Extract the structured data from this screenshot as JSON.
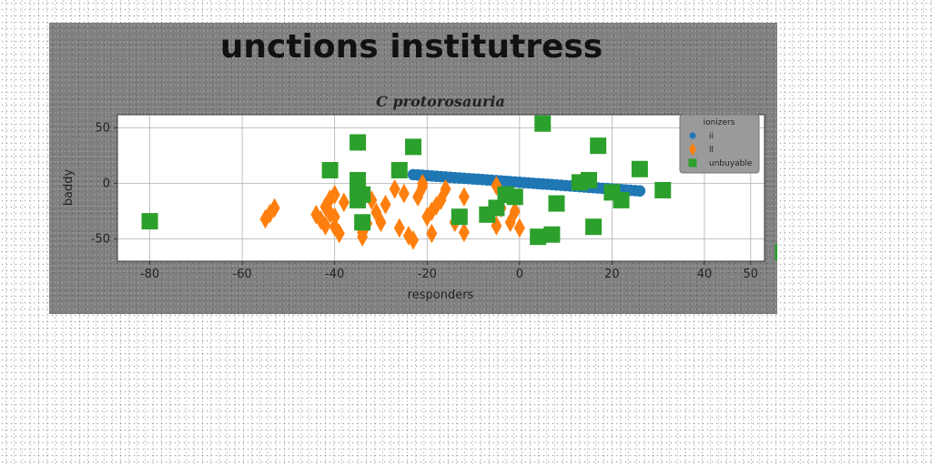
{
  "figure": {
    "suptitle": "unctions institutress"
  },
  "chart_data": {
    "type": "scatter",
    "title": "C protorosauria",
    "xlabel": "responders",
    "ylabel": "baddy",
    "xlim": [
      -87,
      53
    ],
    "ylim": [
      -70,
      62
    ],
    "xticks": [
      -80,
      -60,
      -40,
      -20,
      0,
      20,
      40,
      50
    ],
    "yticks": [
      50,
      0,
      -50
    ],
    "grid": true,
    "legend": {
      "title": "ionizers",
      "placement": "top-right"
    },
    "series": [
      {
        "name": "ii",
        "marker": "circle",
        "color": "#1f77b4",
        "x": [
          -23,
          -22,
          -21,
          -20,
          -19,
          -18,
          -17,
          -16,
          -15,
          -14,
          -13,
          -12,
          -11,
          -10,
          -9,
          -8,
          -7,
          -6,
          -5,
          -4,
          -3,
          -2,
          -1,
          0,
          1,
          2,
          3,
          4,
          5,
          6,
          7,
          8,
          9,
          10,
          11,
          12,
          13,
          14,
          15,
          16,
          17,
          18,
          19,
          20,
          21,
          22,
          23,
          24,
          25,
          26
        ],
        "y": [
          8,
          7.7,
          7.4,
          7.1,
          6.8,
          6.5,
          6.2,
          5.9,
          5.6,
          5.3,
          5,
          4.7,
          4.4,
          4.1,
          3.8,
          3.5,
          3.2,
          2.9,
          2.6,
          2.3,
          2,
          1.7,
          1.4,
          1.1,
          0.8,
          0.5,
          0.2,
          -0.1,
          -0.4,
          -0.7,
          -1,
          -1.3,
          -1.6,
          -1.9,
          -2.2,
          -2.5,
          -2.8,
          -3.1,
          -3.4,
          -3.7,
          -4,
          -4.3,
          -4.6,
          -4.9,
          -5.2,
          -5.5,
          -5.8,
          -6.1,
          -6.4,
          -6.7
        ]
      },
      {
        "name": "ll",
        "marker": "diamond",
        "color": "#ff7f0e",
        "x": [
          -55,
          -54,
          -53,
          -44,
          -43,
          -42,
          -42,
          -41,
          -41,
          -40,
          -40,
          -40,
          -39,
          -38,
          -34,
          -34,
          -33,
          -32,
          -31,
          -30,
          -29,
          -27,
          -26,
          -25,
          -24,
          -23,
          -22,
          -21,
          -21,
          -20,
          -19,
          -19,
          -18,
          -17,
          -16,
          -14,
          -12,
          -12,
          -5,
          -5,
          -4,
          -2,
          -1,
          0
        ],
        "y": [
          -32,
          -27,
          -22,
          -28,
          -33,
          -21,
          -38,
          -14,
          -27,
          -30,
          -10,
          -39,
          -45,
          -17,
          -48,
          -44,
          -36,
          -15,
          -26,
          -35,
          -19,
          -5,
          -40,
          -9,
          -47,
          -51,
          -12,
          0,
          -3,
          -30,
          -45,
          -25,
          -20,
          -15,
          -5,
          -35,
          -12,
          -44,
          -38,
          -2,
          -22,
          -35,
          -25,
          -40
        ]
      },
      {
        "name": "unbuyable",
        "marker": "square",
        "color": "#2ca02c",
        "x": [
          -80,
          -41,
          -35,
          -35,
          -35,
          -35,
          -34,
          -34,
          -26,
          -23,
          -13,
          -7,
          -5,
          -3,
          -3,
          -1,
          4,
          5,
          7,
          8,
          13,
          15,
          16,
          17,
          20,
          22,
          26,
          31,
          57
        ],
        "y": [
          -34,
          12,
          37,
          3,
          -5,
          -15,
          -10,
          -35,
          12,
          33,
          -30,
          -28,
          -22,
          -10,
          -10,
          -12,
          -48,
          54,
          -46,
          -18,
          1,
          3,
          -39,
          34,
          -8,
          -15,
          13,
          -6,
          -62
        ]
      }
    ]
  }
}
